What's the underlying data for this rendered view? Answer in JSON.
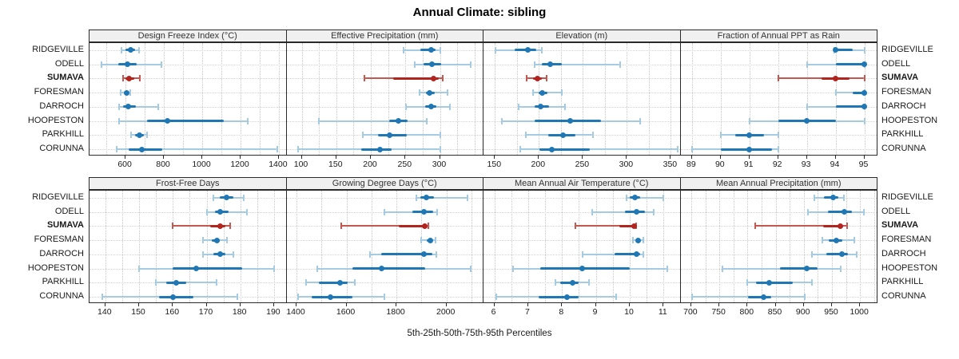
{
  "title": "Annual Climate: sibling",
  "caption": "5th-25th-50th-75th-95th Percentiles",
  "categories": [
    "RIDGEVILLE",
    "ODELL",
    "SUMAVA",
    "FORESMAN",
    "DARROCH",
    "HOOPESTON",
    "PARKHILL",
    "CORUNNA"
  ],
  "highlight_site": "SUMAVA",
  "percentile_labels": [
    "5th",
    "25th",
    "50th",
    "75th",
    "95th"
  ],
  "colors": {
    "blue": "#1f77b4",
    "blue_light": "#a5cbe2",
    "red": "#b2251e",
    "red_light": "#c4574f",
    "grid": "#cccccc",
    "panel_border": "#2a2a2a",
    "header_bg": "#f0f0f0",
    "text": "#1a1a1a"
  },
  "chart_data": [
    {
      "type": "percentile-dotplot",
      "title": "Design Freeze Index (°C)",
      "row": 0,
      "col": 0,
      "xlim": [
        412,
        1440
      ],
      "ticks": [
        600,
        800,
        1000,
        1200,
        1400
      ],
      "minor_step": 100,
      "values": [
        [
          578,
          600,
          627,
          650,
          670
        ],
        [
          476,
          561,
          610,
          659,
          789
        ],
        [
          586,
          598,
          617,
          645,
          676
        ],
        [
          575,
          592,
          606,
          615,
          624
        ],
        [
          568,
          588,
          612,
          655,
          772
        ],
        [
          566,
          714,
          820,
          1112,
          1238
        ],
        [
          628,
          650,
          673,
          694,
          713
        ],
        [
          552,
          618,
          684,
          790,
          1390
        ]
      ]
    },
    {
      "type": "percentile-dotplot",
      "title": "Effective Precipitation (mm)",
      "row": 0,
      "col": 1,
      "xlim": [
        78,
        363
      ],
      "ticks": [
        100,
        150,
        200,
        250,
        300
      ],
      "minor_step": 25,
      "values": [
        [
          247,
          272,
          287,
          294,
          300
        ],
        [
          264,
          276,
          288,
          302,
          345
        ],
        [
          191,
          232,
          291,
          298,
          304
        ],
        [
          270,
          280,
          285,
          292,
          311
        ],
        [
          251,
          278,
          287,
          295,
          314
        ],
        [
          125,
          226,
          240,
          253,
          281
        ],
        [
          188,
          210,
          227,
          252,
          300
        ],
        [
          95,
          186,
          213,
          230,
          300
        ]
      ]
    },
    {
      "type": "percentile-dotplot",
      "title": "Elevation (m)",
      "row": 0,
      "col": 2,
      "xlim": [
        137,
        361
      ],
      "ticks": [
        150,
        200,
        250,
        300,
        350
      ],
      "minor_step": 25,
      "values": [
        [
          151,
          172,
          187,
          197,
          203
        ],
        [
          195,
          203,
          213,
          226,
          292
        ],
        [
          186,
          193,
          198,
          203,
          209
        ],
        [
          193,
          200,
          204,
          210,
          226
        ],
        [
          177,
          195,
          202,
          212,
          230
        ],
        [
          158,
          195,
          236,
          271,
          315
        ],
        [
          185,
          211,
          227,
          242,
          261
        ],
        [
          179,
          201,
          215,
          258,
          358
        ]
      ]
    },
    {
      "type": "percentile-dotplot",
      "title": "Fraction of Annual PPT as Rain",
      "row": 0,
      "col": 3,
      "xlim": [
        88.6,
        95.46
      ],
      "ticks": [
        89,
        90,
        91,
        92,
        93,
        94,
        95
      ],
      "minor_step": 1,
      "values": [
        [
          93.95,
          94,
          94,
          94.6,
          95
        ],
        [
          93,
          94,
          95,
          95,
          95
        ],
        [
          92,
          93.5,
          94,
          94.5,
          95
        ],
        [
          94,
          94.6,
          95,
          95,
          95
        ],
        [
          93,
          94,
          95,
          95,
          95
        ],
        [
          91,
          92,
          93,
          94,
          95
        ],
        [
          90,
          90.5,
          91,
          91.5,
          92
        ],
        [
          89,
          90,
          91,
          91.8,
          92
        ]
      ]
    },
    {
      "type": "percentile-dotplot",
      "title": "Frost-Free Days",
      "row": 1,
      "col": 0,
      "xlim": [
        135.3,
        193.7
      ],
      "ticks": [
        140,
        150,
        160,
        170,
        180,
        190
      ],
      "minor_step": 5,
      "values": [
        [
          172,
          174,
          176,
          178,
          181
        ],
        [
          170,
          172.5,
          174,
          176.5,
          182
        ],
        [
          160,
          171,
          174,
          175.5,
          177
        ],
        [
          169,
          171.5,
          173,
          174,
          176
        ],
        [
          169,
          172,
          174,
          175.5,
          178
        ],
        [
          150,
          160,
          167,
          180.5,
          190
        ],
        [
          155,
          158,
          161,
          164,
          173
        ],
        [
          139,
          156,
          160,
          166,
          179
        ]
      ]
    },
    {
      "type": "percentile-dotplot",
      "title": "Growing Degree Days (°C)",
      "row": 1,
      "col": 1,
      "xlim": [
        1360,
        2148
      ],
      "ticks": [
        1400,
        1600,
        1800,
        2000
      ],
      "minor_step": 100,
      "values": [
        [
          1880,
          1895,
          1920,
          1950,
          2085
        ],
        [
          1750,
          1862,
          1910,
          1948,
          1962
        ],
        [
          1580,
          1810,
          1913,
          1921,
          1928
        ],
        [
          1897,
          1920,
          1935,
          1945,
          1956
        ],
        [
          1695,
          1740,
          1911,
          1945,
          1958
        ],
        [
          1483,
          1625,
          1740,
          1915,
          2097
        ],
        [
          1437,
          1490,
          1573,
          1605,
          1632
        ],
        [
          1405,
          1460,
          1535,
          1625,
          1750
        ]
      ]
    },
    {
      "type": "percentile-dotplot",
      "title": "Mean Annual Air Temperature (°C)",
      "row": 1,
      "col": 2,
      "xlim": [
        5.68,
        11.5
      ],
      "ticks": [
        6,
        7,
        8,
        9,
        10,
        11
      ],
      "minor_step": 0.5,
      "values": [
        [
          9.9,
          10.0,
          10.15,
          10.3,
          11.0
        ],
        [
          8.9,
          9.85,
          10.2,
          10.45,
          10.7
        ],
        [
          8.4,
          9.7,
          10.13,
          10.17,
          10.2
        ],
        [
          10.1,
          10.2,
          10.25,
          10.3,
          10.4
        ],
        [
          8.6,
          9.55,
          10.2,
          10.3,
          10.4
        ],
        [
          6.55,
          7.35,
          8.6,
          10.0,
          11.1
        ],
        [
          7.8,
          7.95,
          8.3,
          8.5,
          8.8
        ],
        [
          6.05,
          7.3,
          8.15,
          8.5,
          9.6
        ]
      ]
    },
    {
      "type": "percentile-dotplot",
      "title": "Mean Annual Precipitation (mm)",
      "row": 1,
      "col": 3,
      "xlim": [
        681,
        1031
      ],
      "ticks": [
        700,
        750,
        800,
        850,
        900,
        950,
        1000
      ],
      "minor_step": 25,
      "values": [
        [
          919,
          936,
          952,
          962,
          971
        ],
        [
          908,
          943,
          972,
          986,
          1007
        ],
        [
          813,
          935,
          965,
          970,
          977
        ],
        [
          933,
          945,
          958,
          969,
          990
        ],
        [
          915,
          940,
          968,
          978,
          994
        ],
        [
          755,
          858,
          905,
          924,
          966
        ],
        [
          800,
          815,
          838,
          880,
          914
        ],
        [
          701,
          801,
          829,
          842,
          902
        ]
      ]
    }
  ]
}
